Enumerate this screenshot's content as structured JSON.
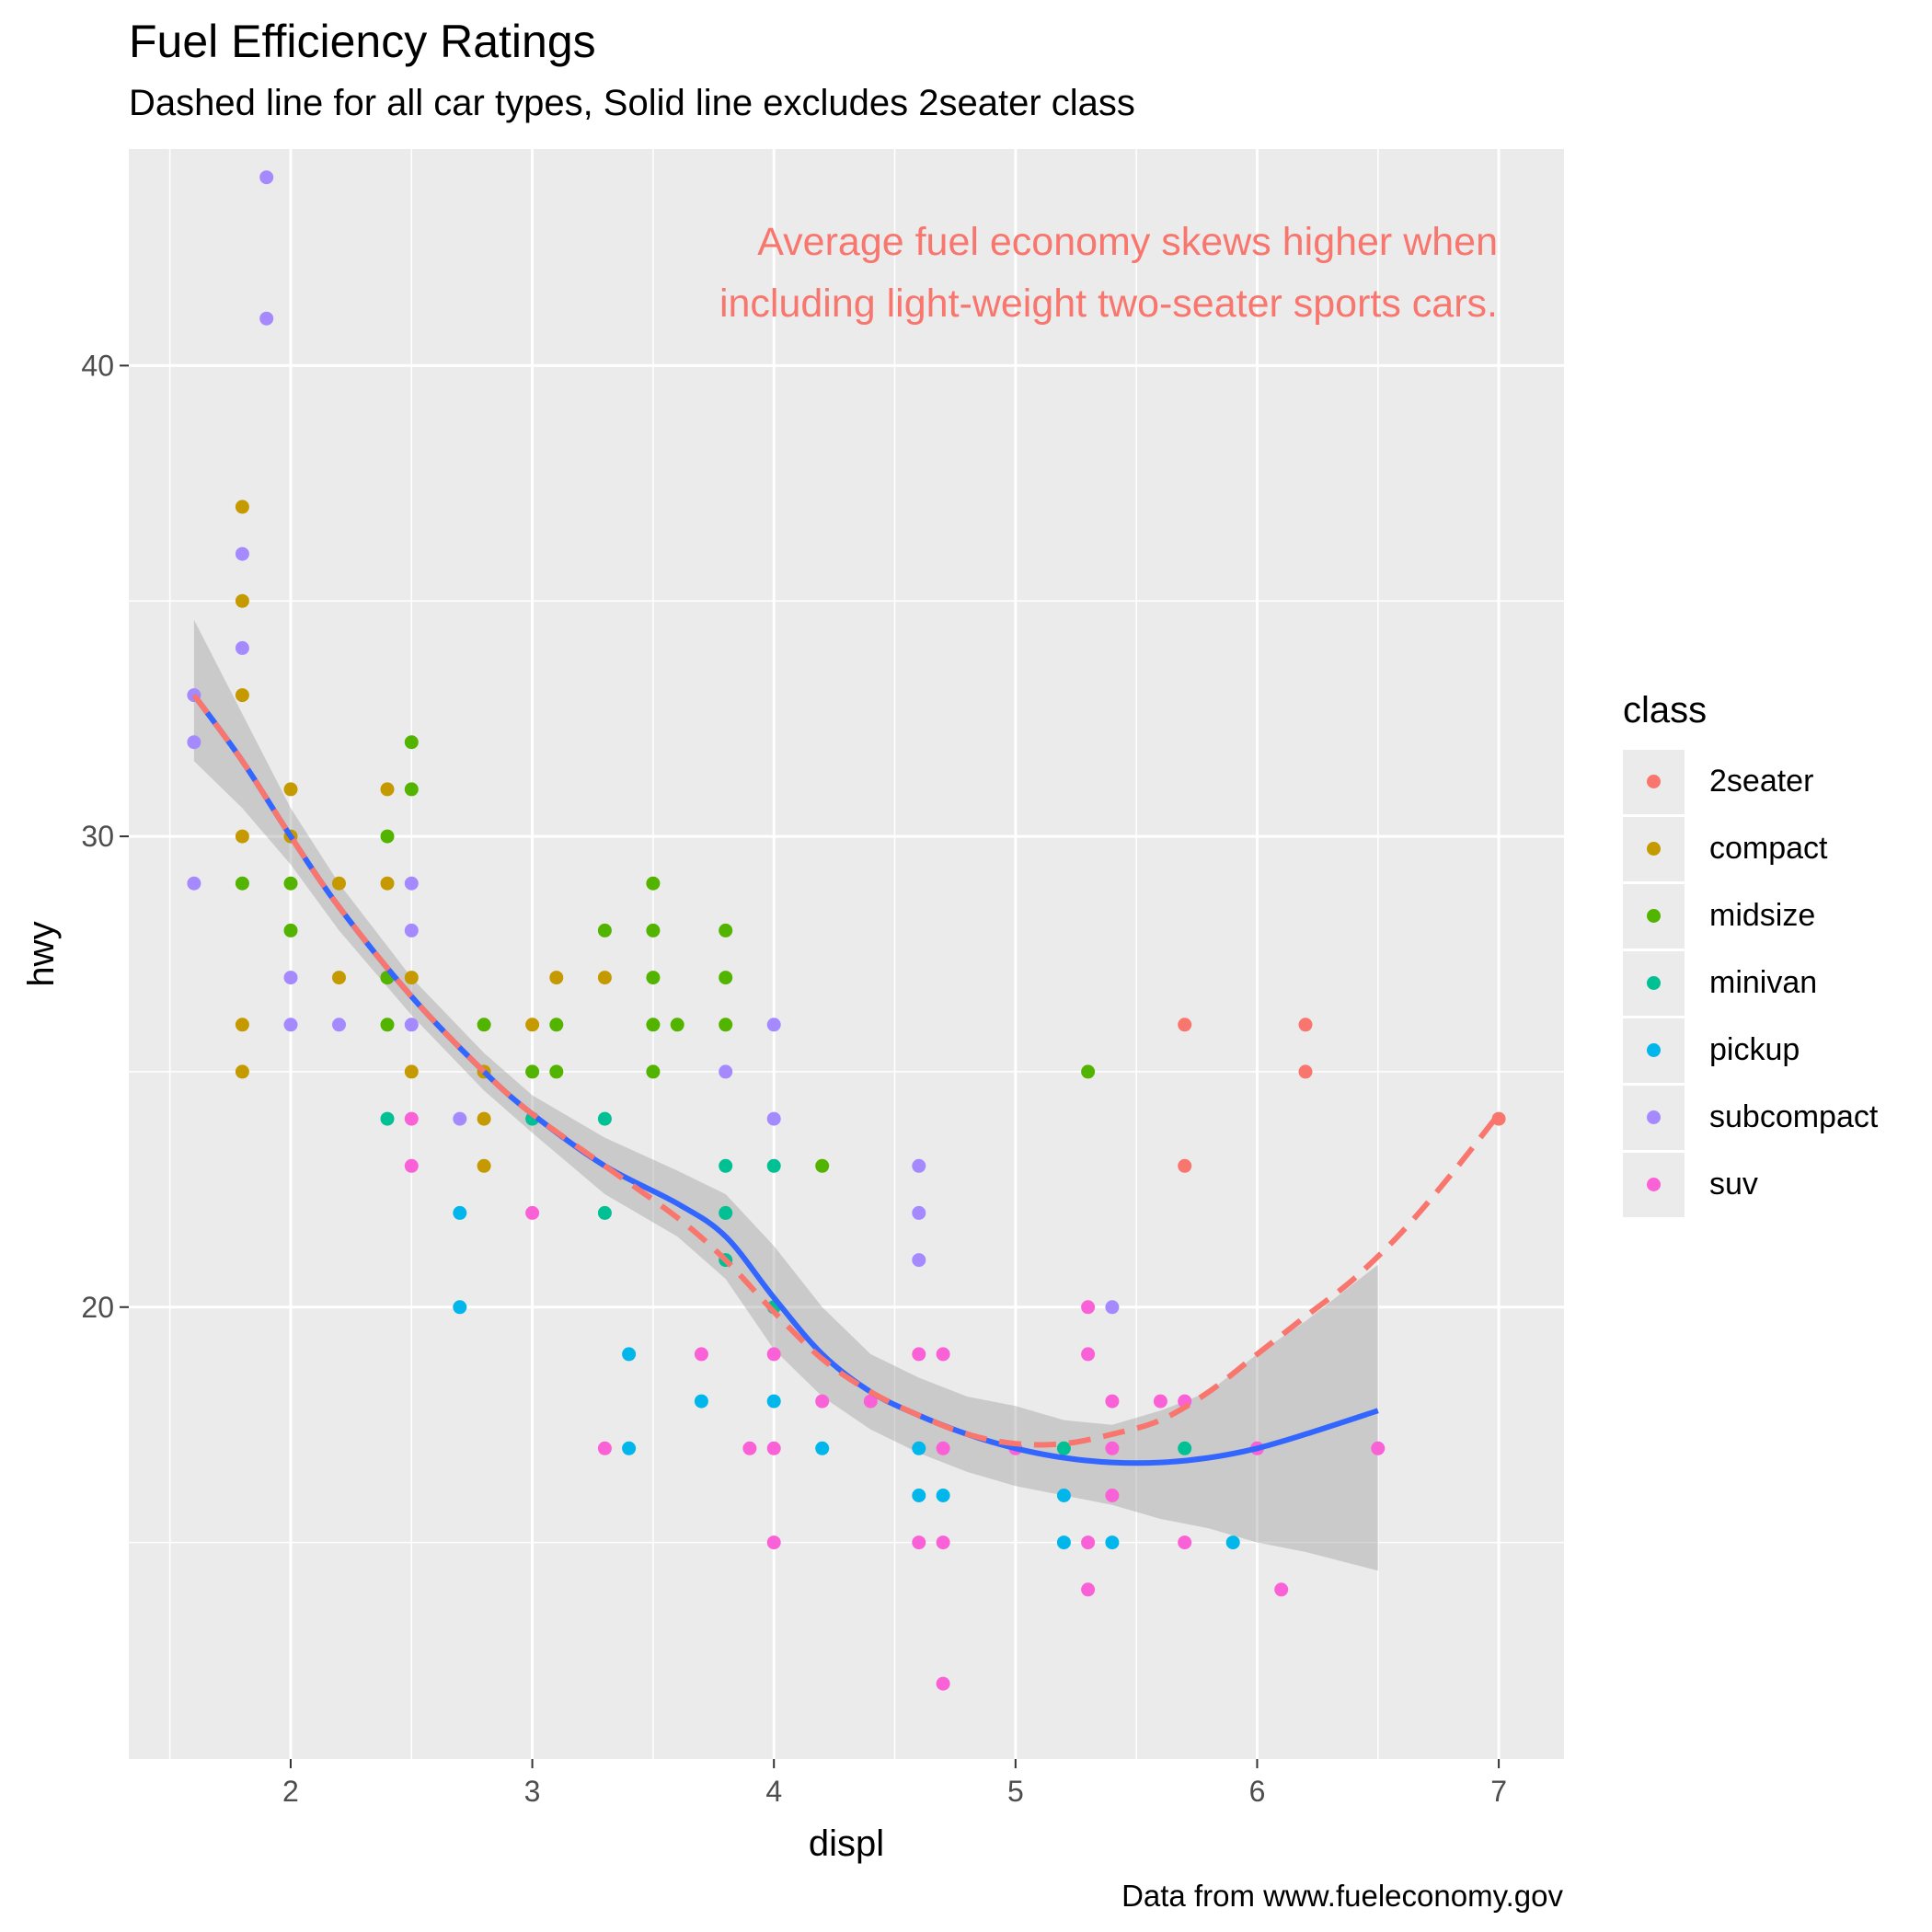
{
  "chart_data": {
    "type": "scatter",
    "title": "Fuel Efficiency Ratings",
    "subtitle": "Dashed line for all car types, Solid line excludes 2seater class",
    "caption": "Data from www.fueleconomy.gov",
    "xlabel": "displ",
    "ylabel": "hwy",
    "xlim": [
      1.33,
      7.27
    ],
    "ylim": [
      10.4,
      44.6
    ],
    "x_ticks": [
      2,
      3,
      4,
      5,
      6,
      7
    ],
    "y_ticks": [
      20,
      30,
      40
    ],
    "grid": true,
    "annotation": {
      "lines": [
        "Average fuel economy skews higher when",
        "including light-weight two-seater sports cars."
      ],
      "color": "#F8766D"
    },
    "legend": {
      "title": "class",
      "placement": "right",
      "entries": [
        {
          "label": "2seater",
          "color": "#F8766D"
        },
        {
          "label": "compact",
          "color": "#C49A00"
        },
        {
          "label": "midsize",
          "color": "#53B400"
        },
        {
          "label": "minivan",
          "color": "#00C094"
        },
        {
          "label": "pickup",
          "color": "#00B6EB"
        },
        {
          "label": "subcompact",
          "color": "#A58AFF"
        },
        {
          "label": "suv",
          "color": "#FB61D7"
        }
      ]
    },
    "series": [
      {
        "name": "2seater",
        "color": "#F8766D",
        "points": [
          [
            5.7,
            26
          ],
          [
            5.7,
            23
          ],
          [
            6.2,
            26
          ],
          [
            6.2,
            25
          ],
          [
            7.0,
            24
          ]
        ]
      },
      {
        "name": "compact",
        "color": "#C49A00",
        "points": [
          [
            1.8,
            37
          ],
          [
            1.8,
            35
          ],
          [
            1.8,
            33
          ],
          [
            1.8,
            30
          ],
          [
            1.8,
            26
          ],
          [
            1.8,
            25
          ],
          [
            2.0,
            31
          ],
          [
            2.0,
            30
          ],
          [
            2.2,
            29
          ],
          [
            2.2,
            27
          ],
          [
            2.4,
            31
          ],
          [
            2.4,
            29
          ],
          [
            2.4,
            27
          ],
          [
            2.5,
            27
          ],
          [
            2.5,
            25
          ],
          [
            2.8,
            25
          ],
          [
            2.8,
            24
          ],
          [
            2.8,
            23
          ],
          [
            3.0,
            26
          ],
          [
            3.1,
            27
          ],
          [
            3.3,
            27
          ]
        ]
      },
      {
        "name": "midsize",
        "color": "#53B400",
        "points": [
          [
            1.8,
            29
          ],
          [
            2.0,
            29
          ],
          [
            2.0,
            28
          ],
          [
            2.4,
            30
          ],
          [
            2.4,
            26
          ],
          [
            2.4,
            27
          ],
          [
            2.5,
            32
          ],
          [
            2.5,
            31
          ],
          [
            2.8,
            26
          ],
          [
            3.0,
            25
          ],
          [
            3.1,
            26
          ],
          [
            3.1,
            25
          ],
          [
            3.3,
            28
          ],
          [
            3.5,
            29
          ],
          [
            3.5,
            28
          ],
          [
            3.5,
            27
          ],
          [
            3.5,
            26
          ],
          [
            3.5,
            25
          ],
          [
            3.6,
            26
          ],
          [
            3.8,
            28
          ],
          [
            3.8,
            27
          ],
          [
            3.8,
            26
          ],
          [
            4.2,
            23
          ],
          [
            5.3,
            25
          ]
        ]
      },
      {
        "name": "minivan",
        "color": "#00C094",
        "points": [
          [
            2.4,
            24
          ],
          [
            3.0,
            24
          ],
          [
            3.3,
            24
          ],
          [
            3.3,
            22
          ],
          [
            3.8,
            23
          ],
          [
            3.8,
            22
          ],
          [
            3.8,
            21
          ],
          [
            4.0,
            23
          ],
          [
            4.0,
            20
          ],
          [
            5.2,
            17
          ],
          [
            5.7,
            17
          ]
        ]
      },
      {
        "name": "pickup",
        "color": "#00B6EB",
        "points": [
          [
            2.7,
            22
          ],
          [
            2.7,
            20
          ],
          [
            3.4,
            19
          ],
          [
            3.4,
            17
          ],
          [
            3.7,
            18
          ],
          [
            4.0,
            18
          ],
          [
            4.2,
            17
          ],
          [
            4.6,
            17
          ],
          [
            4.6,
            16
          ],
          [
            4.7,
            16
          ],
          [
            5.2,
            16
          ],
          [
            5.2,
            15
          ],
          [
            5.4,
            15
          ],
          [
            5.9,
            15
          ]
        ]
      },
      {
        "name": "subcompact",
        "color": "#A58AFF",
        "points": [
          [
            1.6,
            33
          ],
          [
            1.6,
            32
          ],
          [
            1.6,
            29
          ],
          [
            1.8,
            36
          ],
          [
            1.8,
            34
          ],
          [
            1.9,
            44
          ],
          [
            1.9,
            41
          ],
          [
            2.0,
            27
          ],
          [
            2.0,
            26
          ],
          [
            2.2,
            26
          ],
          [
            2.5,
            29
          ],
          [
            2.5,
            28
          ],
          [
            2.5,
            26
          ],
          [
            2.7,
            24
          ],
          [
            3.8,
            25
          ],
          [
            4.0,
            26
          ],
          [
            4.0,
            24
          ],
          [
            4.6,
            23
          ],
          [
            4.6,
            22
          ],
          [
            4.6,
            21
          ],
          [
            5.4,
            20
          ]
        ]
      },
      {
        "name": "suv",
        "color": "#FB61D7",
        "points": [
          [
            2.5,
            24
          ],
          [
            2.5,
            23
          ],
          [
            3.0,
            22
          ],
          [
            3.3,
            17
          ],
          [
            3.7,
            19
          ],
          [
            3.9,
            17
          ],
          [
            4.0,
            19
          ],
          [
            4.0,
            17
          ],
          [
            4.0,
            15
          ],
          [
            4.2,
            18
          ],
          [
            4.4,
            18
          ],
          [
            4.6,
            19
          ],
          [
            4.6,
            15
          ],
          [
            4.7,
            19
          ],
          [
            4.7,
            17
          ],
          [
            4.7,
            15
          ],
          [
            4.7,
            12
          ],
          [
            5.0,
            17
          ],
          [
            5.3,
            20
          ],
          [
            5.3,
            19
          ],
          [
            5.3,
            15
          ],
          [
            5.3,
            14
          ],
          [
            5.4,
            18
          ],
          [
            5.4,
            17
          ],
          [
            5.4,
            16
          ],
          [
            5.6,
            18
          ],
          [
            5.7,
            18
          ],
          [
            5.7,
            15
          ],
          [
            6.0,
            17
          ],
          [
            6.1,
            14
          ],
          [
            6.5,
            17
          ]
        ]
      }
    ],
    "smooth_all": {
      "name": "all car types",
      "linetype": "dashed",
      "color": "#F8766D",
      "x": [
        1.6,
        1.8,
        2.0,
        2.2,
        2.5,
        2.8,
        3.0,
        3.3,
        3.6,
        3.8,
        4.0,
        4.2,
        4.4,
        4.6,
        4.8,
        5.0,
        5.2,
        5.4,
        5.6,
        5.8,
        6.0,
        6.2,
        6.4,
        6.6,
        6.8,
        7.0
      ],
      "y": [
        33.0,
        31.6,
        30.0,
        28.5,
        26.6,
        25.0,
        24.1,
        23.0,
        21.9,
        21.0,
        19.9,
        18.9,
        18.2,
        17.7,
        17.3,
        17.1,
        17.1,
        17.3,
        17.6,
        18.2,
        19.0,
        19.8,
        20.6,
        21.6,
        22.8,
        24.1
      ]
    },
    "smooth_excluding_2seater": {
      "name": "excludes 2seater class",
      "linetype": "solid",
      "color": "#3366FF",
      "x": [
        1.6,
        1.8,
        2.0,
        2.2,
        2.5,
        2.8,
        3.0,
        3.3,
        3.6,
        3.8,
        4.0,
        4.2,
        4.4,
        4.6,
        4.8,
        5.0,
        5.2,
        5.4,
        5.6,
        5.8,
        6.0,
        6.2,
        6.5
      ],
      "y": [
        33.0,
        31.6,
        30.0,
        28.5,
        26.6,
        25.0,
        24.1,
        23.0,
        22.2,
        21.5,
        20.2,
        19.0,
        18.2,
        17.7,
        17.3,
        17.0,
        16.8,
        16.7,
        16.7,
        16.8,
        17.0,
        17.3,
        17.8
      ],
      "ci_lower": [
        31.6,
        30.6,
        29.4,
        28.0,
        26.2,
        24.6,
        23.7,
        22.4,
        21.5,
        20.6,
        19.1,
        18.1,
        17.4,
        16.9,
        16.5,
        16.2,
        16.0,
        15.8,
        15.5,
        15.3,
        15.0,
        14.8,
        14.4
      ],
      "ci_upper": [
        34.6,
        32.6,
        30.6,
        29.0,
        27.0,
        25.4,
        24.5,
        23.6,
        22.9,
        22.4,
        21.3,
        20.0,
        19.0,
        18.5,
        18.1,
        17.9,
        17.6,
        17.5,
        17.8,
        18.2,
        19.0,
        19.7,
        20.9
      ]
    }
  }
}
